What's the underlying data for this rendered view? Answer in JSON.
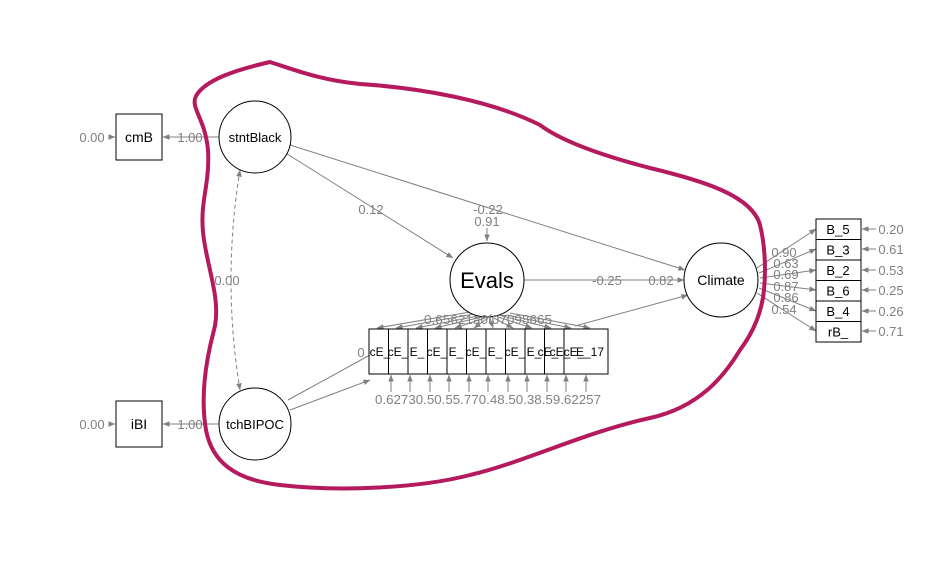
{
  "colors": {
    "highlight": "#b5195e",
    "edge": "#808080",
    "node_stroke": "#000000"
  },
  "latents": {
    "stntBlack": "stntBlack",
    "tchBIPOC": "tchBIPOC",
    "Evals": "Evals",
    "Climate": "Climate"
  },
  "observed": {
    "cmB": "cmB",
    "iBI": "iBI",
    "climate_items": [
      "B_5",
      "B_3",
      "B_2",
      "B_6",
      "B_4",
      "rB_"
    ],
    "eval_items": [
      "cE_",
      "cE_",
      "E_",
      "cE_",
      "E_",
      "cE_",
      "E_",
      "cE_",
      "E_",
      "cE_",
      "cE_",
      "cE_",
      "E_17"
    ]
  },
  "paths": {
    "stntBlack_to_cmB": "1.00",
    "cmB_residual": "0.00",
    "tchBIPOC_to_iBI": "1.00",
    "iBI_residual": "0.00",
    "stntBlack_tchBIPOC_cov": "0.00",
    "stntBlack_to_Evals": "0.12",
    "stntBlack_to_Climate": "-0.22",
    "Evals_residual": "0.91",
    "Evals_to_Climate": "-0.25",
    "Climate_residual": "0.82",
    "tchBIPOC_to_evals_fragment": "0",
    "evals_loadings_text": "0.65621a0f07098665",
    "climate_loadings": [
      "0.90",
      "0.63",
      "0.69",
      "0.87",
      "0.86",
      "0.54"
    ],
    "climate_residuals": [
      "0.20",
      "0.61",
      "0.53",
      "0.25",
      "0.26",
      "0.71"
    ],
    "evals_residuals_text": "0.62730.50.55.770.48.50.38.59.62257"
  }
}
